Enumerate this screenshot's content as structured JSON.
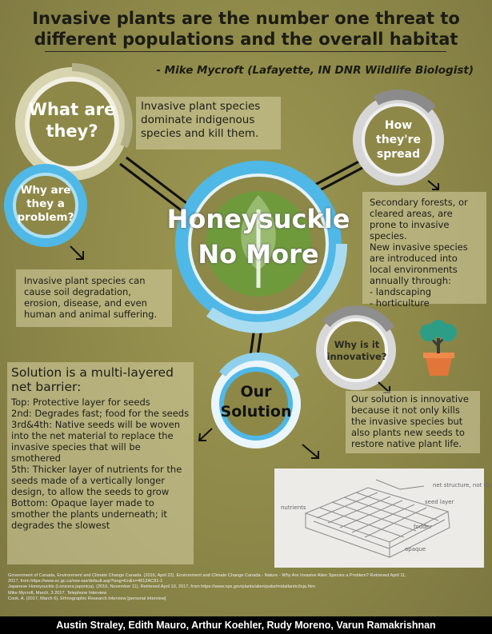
{
  "title": "Invasive plants are the number one threat to different populations and the overall habitat",
  "quote": "- Mike Mycroft (Lafayette, IN DNR Wildlife Biologist)",
  "center": {
    "line1": "Honeysuckle",
    "line2": "No More"
  },
  "what": {
    "heading_1": "What are",
    "heading_2": "they?",
    "text": "Invasive plant species dominate indigenous species and kill them."
  },
  "why": {
    "heading_1": "Why are",
    "heading_2": "they a",
    "heading_3": "problem?",
    "text": "Invasive plant species can cause soil degradation, erosion, disease, and even human and animal suffering."
  },
  "spread": {
    "heading_1": "How",
    "heading_2": "they're",
    "heading_3": "spread",
    "p1": "Secondary forests, or cleared areas, are prone to invasive species.",
    "p2": "New invasive species are introduced into local environments annually through:",
    "b1": "- landscaping",
    "b2": "- horticulture"
  },
  "innovative": {
    "heading_1": "Why is it",
    "heading_2": "innovative?",
    "text": "Our solution is innovative because it not only kills the invasive species but also plants new seeds to restore native plant life."
  },
  "solution": {
    "heading_1": "Our",
    "heading_2": "Solution",
    "panel_title": "Solution is a multi-layered net barrier:",
    "lines": [
      "Top: Protective layer for seeds",
      "2nd: Degrades fast; food for the seeds",
      "3rd&4th: Native seeds will be woven into the net material to replace the invasive species that will be smothered",
      "5th: Thicker layer of nutrients for the seeds made of a vertically longer design, to allow the seeds to grow",
      "Bottom: Opaque layer made to smother the plants underneath; it degrades the slowest"
    ]
  },
  "sketch": {
    "labels": [
      "net structure, not to scale",
      "seed layer",
      "nutrients",
      "fodder",
      "opaque"
    ]
  },
  "references": [
    "Government of Canada, Environment and Climate Change Canada. (2016, April 22). Environment and Climate Change Canada - Nature - Why Are Invasive Alien Species a Problem? Retrieved April 11,",
    "2017, from https://www.ec.gc.ca/eee-ias/default.asp?lang=En&n=4612AC81-1",
    "Japanese Honeysuckle (Lonicera japonica). (2010, November 11). Retrieved April 10, 2017, from https://www.nps.gov/plants/alien/pubs/midatlantic/loja.htm",
    "Mike Mycroft, March, 3 2017. Telephone Interview",
    "Cook, A. (2017, March 6). Ethnographic Research Interview [personal interview]"
  ],
  "authors": "Austin Straley, Edith Mauro, Arthur Koehler, Rudy Moreno, Varun Ramakrishnan",
  "colors": {
    "background": "#8f8a4a",
    "blue": "#4fb8e6",
    "light_blue": "#a9dcf1",
    "cream": "#dcd9b8",
    "green": "#6f9a3c",
    "grey": "#9d9d9d"
  }
}
